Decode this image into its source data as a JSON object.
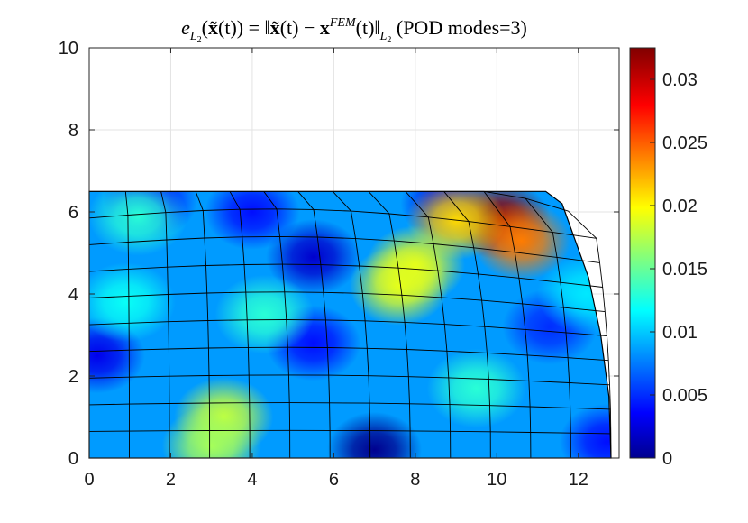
{
  "chart_data": {
    "type": "heatmap",
    "title": {
      "e": "e",
      "e_sub": "L",
      "e_subsub": "2",
      "mid1": "(",
      "xtilde1": "x̃",
      "mid2": "(t)) = ‖",
      "xtilde2": "x̃",
      "mid3": "(t) − ",
      "xbold": "x",
      "sup": "FEM",
      "mid4": "(t)‖",
      "norm_sub": "L",
      "norm_subsub": "2",
      "tail": " (POD modes=3)"
    },
    "xlabel": "",
    "ylabel": "",
    "xlim": [
      0,
      13
    ],
    "ylim": [
      0,
      10
    ],
    "xticks": [
      "0",
      "2",
      "4",
      "6",
      "8",
      "10",
      "12"
    ],
    "yticks": [
      "0",
      "2",
      "4",
      "6",
      "8",
      "10"
    ],
    "grid": true,
    "colorbar": {
      "colormap": "jet",
      "range": [
        0,
        0.0325
      ],
      "ticks": [
        "0",
        "0.005",
        "0.01",
        "0.015",
        "0.02",
        "0.025",
        "0.03"
      ]
    },
    "domain_outline": [
      [
        0,
        0
      ],
      [
        12.8,
        0
      ],
      [
        12.75,
        1.5
      ],
      [
        12.55,
        3.0
      ],
      [
        12.25,
        4.4
      ],
      [
        11.6,
        6.2
      ],
      [
        11.2,
        6.5
      ],
      [
        0,
        6.5
      ]
    ],
    "mesh": {
      "columns": 13,
      "rows": 10
    },
    "hotspots": [
      {
        "x": 10.1,
        "y": 5.8,
        "value": 0.032
      },
      {
        "x": 10.6,
        "y": 5.3,
        "value": 0.024
      },
      {
        "x": 9.0,
        "y": 5.8,
        "value": 0.021
      },
      {
        "x": 8.0,
        "y": 4.7,
        "value": 0.019
      },
      {
        "x": 7.6,
        "y": 4.2,
        "value": 0.019
      },
      {
        "x": 3.3,
        "y": 1.0,
        "value": 0.018
      },
      {
        "x": 3.0,
        "y": 0.3,
        "value": 0.017
      },
      {
        "x": 4.3,
        "y": 3.5,
        "value": 0.013
      },
      {
        "x": 1.2,
        "y": 5.9,
        "value": 0.013
      },
      {
        "x": 9.5,
        "y": 1.7,
        "value": 0.013
      },
      {
        "x": 0.9,
        "y": 3.8,
        "value": 0.012
      },
      {
        "x": 12.2,
        "y": 4.0,
        "value": 0.011
      }
    ],
    "lows": [
      {
        "x": 7.0,
        "y": 0.2,
        "value": 0.0
      },
      {
        "x": 5.5,
        "y": 4.9,
        "value": 0.002
      },
      {
        "x": 0.2,
        "y": 2.5,
        "value": 0.003
      },
      {
        "x": 4.0,
        "y": 6.0,
        "value": 0.004
      },
      {
        "x": 8.8,
        "y": 6.2,
        "value": 0.003
      },
      {
        "x": 5.5,
        "y": 2.8,
        "value": 0.004
      },
      {
        "x": 11.3,
        "y": 3.2,
        "value": 0.005
      },
      {
        "x": 1.5,
        "y": 6.3,
        "value": 0.004
      },
      {
        "x": 12.7,
        "y": 0.4,
        "value": 0.004
      }
    ],
    "base_value": 0.0085
  }
}
